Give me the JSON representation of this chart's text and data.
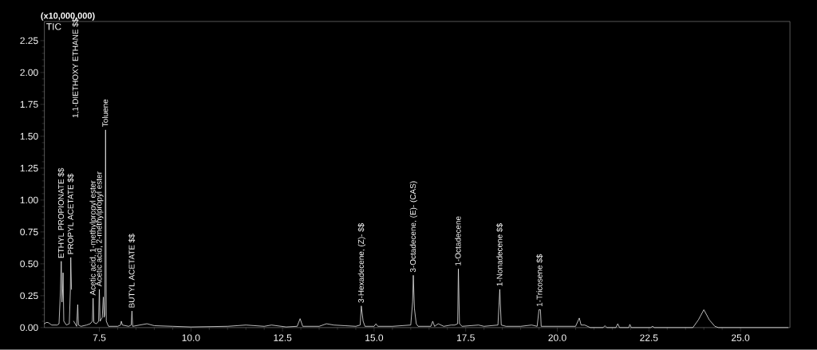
{
  "chart_data": {
    "type": "line",
    "ylabel": "(x10,000,000)",
    "xlim": [
      6.0,
      26.35
    ],
    "ylim": [
      0,
      2.4
    ],
    "xticks": [
      {
        "value": 7.5,
        "label": "7.5"
      },
      {
        "value": 10.0,
        "label": "10.0"
      },
      {
        "value": 12.5,
        "label": "12.5"
      },
      {
        "value": 15.0,
        "label": "15.0"
      },
      {
        "value": 17.5,
        "label": "17.5"
      },
      {
        "value": 20.0,
        "label": "20.0"
      },
      {
        "value": 22.5,
        "label": "22.5"
      },
      {
        "value": 25.0,
        "label": "25.0"
      }
    ],
    "yticks": [
      {
        "value": 0,
        "label": "0.00"
      },
      {
        "value": 0.25,
        "label": "0.25"
      },
      {
        "value": 0.5,
        "label": "0.50"
      },
      {
        "value": 0.75,
        "label": "0.75"
      },
      {
        "value": 1.0,
        "label": "1.00"
      },
      {
        "value": 1.25,
        "label": "1.25"
      },
      {
        "value": 1.5,
        "label": "1.50"
      },
      {
        "value": 1.75,
        "label": "1.75"
      },
      {
        "value": 2.0,
        "label": "2.00"
      },
      {
        "value": 2.25,
        "label": "2.25"
      }
    ],
    "x": [
      6.0,
      6.05,
      6.1,
      6.15,
      6.2,
      6.35,
      6.4,
      6.44,
      6.46,
      6.48,
      6.5,
      6.51,
      6.53,
      6.6,
      6.68,
      6.71,
      6.72,
      6.74,
      6.76,
      6.78,
      6.8,
      6.88,
      6.91,
      6.93,
      7.0,
      7.15,
      7.25,
      7.31,
      7.33,
      7.35,
      7.42,
      7.48,
      7.5,
      7.52,
      7.58,
      7.61,
      7.63,
      7.65,
      7.67,
      7.69,
      7.75,
      8.0,
      8.08,
      8.1,
      8.13,
      8.3,
      8.37,
      8.39,
      8.41,
      8.6,
      8.8,
      9.0,
      9.5,
      10.0,
      11.0,
      11.5,
      12.0,
      12.2,
      12.6,
      12.9,
      12.98,
      13.05,
      13.5,
      13.7,
      13.9,
      14.2,
      14.5,
      14.62,
      14.65,
      14.7,
      14.75,
      15.0,
      15.05,
      15.1,
      15.5,
      16.0,
      16.05,
      16.07,
      16.1,
      16.15,
      16.2,
      16.55,
      16.6,
      16.65,
      16.75,
      16.9,
      17.1,
      17.2,
      17.28,
      17.3,
      17.33,
      17.4,
      17.85,
      18.0,
      18.38,
      18.43,
      18.47,
      18.6,
      19.0,
      19.3,
      19.45,
      19.5,
      19.54,
      19.56,
      20.0,
      20.5,
      20.6,
      20.65,
      20.75,
      20.9,
      21.25,
      21.3,
      21.35,
      21.6,
      21.65,
      21.7,
      21.95,
      21.98,
      22.02,
      22.55,
      22.6,
      22.65,
      23.7,
      23.85,
      24.0,
      24.15,
      24.3,
      24.4,
      26.3
    ],
    "series": [
      {
        "name": "TIC",
        "color": "#e6e6e6",
        "values": [
          0.03,
          0.04,
          0.04,
          0.03,
          0.02,
          0.02,
          0.03,
          0.3,
          0.52,
          0.2,
          0.3,
          0.43,
          0.05,
          0.02,
          0.03,
          0.3,
          0.55,
          0.3,
          null,
          null,
          0.05,
          0.01,
          0.18,
          0.02,
          0.01,
          0.02,
          0.03,
          0.05,
          0.23,
          0.04,
          0.03,
          0.05,
          0.3,
          0.05,
          0.08,
          0.24,
          0.08,
          0.1,
          1.55,
          0.05,
          0.01,
          0.01,
          0.02,
          0.05,
          0.02,
          0.01,
          0.02,
          0.13,
          0.01,
          0.02,
          0.03,
          0.015,
          0.01,
          0.005,
          0.01,
          0.02,
          0.01,
          0.02,
          0.005,
          0.01,
          0.07,
          0.01,
          0.01,
          0.03,
          0.02,
          0.015,
          0.01,
          0.02,
          0.17,
          0.05,
          0.01,
          0.01,
          0.03,
          0.01,
          0.01,
          0.02,
          0.2,
          0.41,
          0.15,
          0.03,
          0.01,
          0.01,
          0.05,
          0.01,
          0.03,
          0.01,
          0.02,
          0.02,
          0.03,
          0.46,
          0.03,
          0.01,
          0.02,
          0.01,
          0.02,
          0.3,
          0.02,
          0.01,
          0.01,
          0.02,
          0.01,
          0.14,
          0.14,
          0.01,
          0.01,
          0.01,
          0.075,
          0.02,
          0.02,
          0.0,
          0.0,
          0.015,
          0.0,
          0.0,
          0.03,
          0.0,
          0.0,
          0.025,
          0.0,
          0.0,
          0.01,
          0.0,
          0.0,
          0.06,
          0.14,
          0.06,
          0.01,
          0.0,
          0.0
        ]
      }
    ],
    "annotations": [
      {
        "text": "ETHYL PROPIONATE $$",
        "x": 6.46,
        "y": 0.52
      },
      {
        "text": "PROPYL ACETATE $$",
        "x": 6.72,
        "y": 0.55
      },
      "1,1-DIETHOXY ETHANE $$",
      {
        "text": "Acetic acid, 1-methylpropyl ester",
        "x": 7.33,
        "y": 0.23
      },
      {
        "text": "Acetic acid, 2-methylpropyl ester",
        "x": 7.5,
        "y": 0.3
      },
      {
        "text": "Toluene",
        "x": 7.67,
        "y": 1.55
      },
      {
        "text": "BUTYL ACETATE $$",
        "x": 8.39,
        "y": 0.13
      },
      {
        "text": "3-Hexadecene, (Z)- $$",
        "x": 14.65,
        "y": 0.17
      },
      {
        "text": "3-Octadecene, (E)- (CAS)",
        "x": 16.07,
        "y": 0.41
      },
      {
        "text": "1-Octadecene",
        "x": 17.3,
        "y": 0.46
      },
      {
        "text": "1-Nonadecene $$",
        "x": 18.43,
        "y": 0.3
      },
      {
        "text": "1-Tricosene $$",
        "x": 19.52,
        "y": 0.14
      }
    ]
  }
}
